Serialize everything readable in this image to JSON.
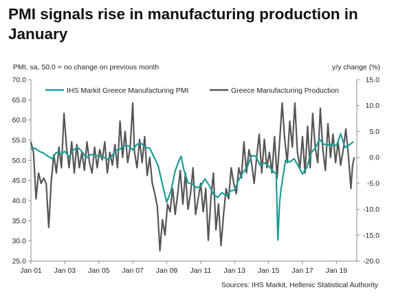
{
  "title_line1": "PMI signals rise in manufacturing production in",
  "title_line2": "January",
  "left_axis_note": "PMI, sa, 50.0 = no change on previous month",
  "right_axis_note": "y/y change (%)",
  "source": "Sources: IHS Markit, Hellenic Statistical Authority",
  "colors": {
    "pmi": "#1a9c96",
    "production": "#555555",
    "axis": "#888888"
  },
  "chart_data": {
    "type": "line",
    "left_axis": {
      "ylim": [
        25,
        70
      ],
      "ticks": [
        "25.0",
        "30.0",
        "35.0",
        "40.0",
        "45.0",
        "50.0",
        "55.0",
        "60.0",
        "65.0",
        "70.0"
      ]
    },
    "right_axis": {
      "ylim": [
        -20,
        15
      ],
      "ticks": [
        "-20.0",
        "-15.0",
        "-10.0",
        "-5.0",
        "0.0",
        "5.0",
        "10.0",
        "15.0"
      ]
    },
    "x_ticks": [
      "Jan 01",
      "Jan 03",
      "Jan 05",
      "Jan 07",
      "Jan 09",
      "Jan 11",
      "Jan 13",
      "Jan 15",
      "Jan 17",
      "Jan 19"
    ],
    "x_range": [
      2001.0,
      2020.2
    ],
    "legend": {
      "position": "top"
    },
    "series": [
      {
        "name": "IHS Markit Greece Manufacturing PMI",
        "axis": "left",
        "points": [
          [
            2001.0,
            52.8
          ],
          [
            2001.25,
            53.0
          ],
          [
            2001.5,
            52.2
          ],
          [
            2001.75,
            51.8
          ],
          [
            2002.0,
            51.0
          ],
          [
            2002.25,
            50.4
          ],
          [
            2002.5,
            52.0
          ],
          [
            2002.75,
            51.6
          ],
          [
            2003.0,
            52.2
          ],
          [
            2003.25,
            50.8
          ],
          [
            2003.5,
            52.6
          ],
          [
            2003.75,
            53.2
          ],
          [
            2004.0,
            52.2
          ],
          [
            2004.25,
            50.6
          ],
          [
            2004.5,
            51.4
          ],
          [
            2004.75,
            51.4
          ],
          [
            2005.0,
            51.0
          ],
          [
            2005.25,
            50.8
          ],
          [
            2005.5,
            50.2
          ],
          [
            2005.75,
            51.0
          ],
          [
            2006.0,
            52.4
          ],
          [
            2006.25,
            52.8
          ],
          [
            2006.5,
            53.6
          ],
          [
            2006.75,
            53.6
          ],
          [
            2007.0,
            52.6
          ],
          [
            2007.25,
            54.0
          ],
          [
            2007.5,
            54.2
          ],
          [
            2007.75,
            53.2
          ],
          [
            2008.0,
            53.0
          ],
          [
            2008.25,
            50.8
          ],
          [
            2008.5,
            48.6
          ],
          [
            2008.75,
            44.0
          ],
          [
            2009.0,
            39.6
          ],
          [
            2009.25,
            42.4
          ],
          [
            2009.5,
            47.4
          ],
          [
            2009.75,
            50.2
          ],
          [
            2009.85,
            51.0
          ],
          [
            2010.0,
            47.8
          ],
          [
            2010.25,
            44.4
          ],
          [
            2010.5,
            44.2
          ],
          [
            2010.75,
            43.2
          ],
          [
            2011.0,
            43.6
          ],
          [
            2011.25,
            45.4
          ],
          [
            2011.5,
            43.8
          ],
          [
            2011.75,
            41.6
          ],
          [
            2012.0,
            40.8
          ],
          [
            2012.25,
            42.0
          ],
          [
            2012.5,
            41.2
          ],
          [
            2012.75,
            42.4
          ],
          [
            2013.0,
            42.6
          ],
          [
            2013.25,
            45.2
          ],
          [
            2013.5,
            47.0
          ],
          [
            2013.75,
            48.4
          ],
          [
            2014.0,
            51.2
          ],
          [
            2014.25,
            51.0
          ],
          [
            2014.5,
            48.8
          ],
          [
            2014.75,
            49.4
          ],
          [
            2015.0,
            48.6
          ],
          [
            2015.25,
            47.4
          ],
          [
            2015.45,
            46.6
          ],
          [
            2015.55,
            30.2
          ],
          [
            2015.65,
            39.6
          ],
          [
            2015.75,
            43.2
          ],
          [
            2016.0,
            50.0
          ],
          [
            2016.25,
            49.6
          ],
          [
            2016.5,
            50.4
          ],
          [
            2016.75,
            48.6
          ],
          [
            2017.0,
            46.6
          ],
          [
            2017.25,
            48.2
          ],
          [
            2017.5,
            51.8
          ],
          [
            2017.75,
            53.0
          ],
          [
            2018.0,
            55.2
          ],
          [
            2018.25,
            54.0
          ],
          [
            2018.5,
            53.8
          ],
          [
            2018.75,
            54.0
          ],
          [
            2019.0,
            53.6
          ],
          [
            2019.25,
            56.6
          ],
          [
            2019.5,
            53.2
          ],
          [
            2019.75,
            53.8
          ],
          [
            2020.0,
            54.6
          ]
        ]
      },
      {
        "name": "Greece Manufacturing Production",
        "axis": "right",
        "points": [
          [
            2001.0,
            3.0
          ],
          [
            2001.15,
            1.0
          ],
          [
            2001.3,
            -8.0
          ],
          [
            2001.45,
            -3.0
          ],
          [
            2001.6,
            -5.0
          ],
          [
            2001.75,
            -4.0
          ],
          [
            2001.9,
            -5.0
          ],
          [
            2002.05,
            -13.5
          ],
          [
            2002.2,
            -4.5
          ],
          [
            2002.35,
            0.5
          ],
          [
            2002.5,
            -3.0
          ],
          [
            2002.65,
            2.0
          ],
          [
            2002.8,
            -2.0
          ],
          [
            2002.95,
            8.5
          ],
          [
            2003.1,
            2.0
          ],
          [
            2003.25,
            -2.0
          ],
          [
            2003.4,
            3.0
          ],
          [
            2003.55,
            -3.0
          ],
          [
            2003.7,
            2.5
          ],
          [
            2003.85,
            -2.0
          ],
          [
            2004.0,
            1.0
          ],
          [
            2004.15,
            -2.5
          ],
          [
            2004.3,
            3.0
          ],
          [
            2004.45,
            -1.0
          ],
          [
            2004.6,
            -3.0
          ],
          [
            2004.75,
            2.0
          ],
          [
            2004.9,
            -2.0
          ],
          [
            2005.05,
            1.5
          ],
          [
            2005.2,
            -0.5
          ],
          [
            2005.35,
            3.0
          ],
          [
            2005.5,
            -3.0
          ],
          [
            2005.65,
            1.0
          ],
          [
            2005.8,
            -1.5
          ],
          [
            2005.95,
            2.5
          ],
          [
            2006.1,
            -2.0
          ],
          [
            2006.25,
            7.0
          ],
          [
            2006.4,
            0.0
          ],
          [
            2006.55,
            5.0
          ],
          [
            2006.7,
            -1.0
          ],
          [
            2006.85,
            2.0
          ],
          [
            2007.0,
            10.5
          ],
          [
            2007.1,
            1.0
          ],
          [
            2007.25,
            -2.0
          ],
          [
            2007.4,
            3.5
          ],
          [
            2007.55,
            -1.0
          ],
          [
            2007.7,
            4.0
          ],
          [
            2007.85,
            -3.5
          ],
          [
            2008.0,
            0.0
          ],
          [
            2008.15,
            -5.0
          ],
          [
            2008.3,
            -7.0
          ],
          [
            2008.45,
            -9.5
          ],
          [
            2008.6,
            -18.0
          ],
          [
            2008.75,
            -12.0
          ],
          [
            2008.9,
            -15.0
          ],
          [
            2009.05,
            -9.0
          ],
          [
            2009.2,
            -10.5
          ],
          [
            2009.35,
            -6.0
          ],
          [
            2009.5,
            -11.0
          ],
          [
            2009.65,
            -7.0
          ],
          [
            2009.8,
            -2.5
          ],
          [
            2009.95,
            -9.0
          ],
          [
            2010.1,
            -3.0
          ],
          [
            2010.25,
            -10.0
          ],
          [
            2010.4,
            -7.0
          ],
          [
            2010.55,
            -2.0
          ],
          [
            2010.7,
            -11.0
          ],
          [
            2010.85,
            -8.0
          ],
          [
            2011.0,
            -5.0
          ],
          [
            2011.15,
            -10.5
          ],
          [
            2011.3,
            -6.0
          ],
          [
            2011.45,
            -16.0
          ],
          [
            2011.6,
            -8.0
          ],
          [
            2011.75,
            -3.0
          ],
          [
            2011.9,
            -14.0
          ],
          [
            2012.05,
            -9.0
          ],
          [
            2012.2,
            -17.0
          ],
          [
            2012.35,
            -11.0
          ],
          [
            2012.5,
            -6.0
          ],
          [
            2012.65,
            -8.0
          ],
          [
            2012.8,
            -2.0
          ],
          [
            2012.95,
            -5.0
          ],
          [
            2013.1,
            -7.0
          ],
          [
            2013.25,
            -2.0
          ],
          [
            2013.4,
            -4.0
          ],
          [
            2013.55,
            3.0
          ],
          [
            2013.7,
            -3.0
          ],
          [
            2013.85,
            1.5
          ],
          [
            2014.0,
            -1.0
          ],
          [
            2014.15,
            -5.0
          ],
          [
            2014.3,
            0.0
          ],
          [
            2014.45,
            4.5
          ],
          [
            2014.6,
            -3.0
          ],
          [
            2014.75,
            3.5
          ],
          [
            2014.9,
            -2.0
          ],
          [
            2015.05,
            1.0
          ],
          [
            2015.2,
            -3.0
          ],
          [
            2015.35,
            4.0
          ],
          [
            2015.5,
            -4.0
          ],
          [
            2015.65,
            3.0
          ],
          [
            2015.8,
            10.5
          ],
          [
            2015.95,
            3.5
          ],
          [
            2016.1,
            -1.0
          ],
          [
            2016.25,
            7.0
          ],
          [
            2016.4,
            2.0
          ],
          [
            2016.55,
            10.5
          ],
          [
            2016.7,
            1.0
          ],
          [
            2016.85,
            -2.0
          ],
          [
            2017.0,
            4.0
          ],
          [
            2017.15,
            -3.0
          ],
          [
            2017.3,
            6.0
          ],
          [
            2017.45,
            -2.0
          ],
          [
            2017.6,
            8.5
          ],
          [
            2017.75,
            2.0
          ],
          [
            2017.9,
            -1.0
          ],
          [
            2018.05,
            9.5
          ],
          [
            2018.2,
            1.5
          ],
          [
            2018.35,
            -2.5
          ],
          [
            2018.5,
            6.5
          ],
          [
            2018.65,
            0.0
          ],
          [
            2018.8,
            4.5
          ],
          [
            2018.95,
            -1.0
          ],
          [
            2019.1,
            3.0
          ],
          [
            2019.25,
            -1.5
          ],
          [
            2019.4,
            1.5
          ],
          [
            2019.55,
            5.5
          ],
          [
            2019.7,
            0.5
          ],
          [
            2019.85,
            -6.0
          ],
          [
            2019.95,
            -1.5
          ],
          [
            2020.05,
            0.0
          ]
        ]
      }
    ]
  }
}
